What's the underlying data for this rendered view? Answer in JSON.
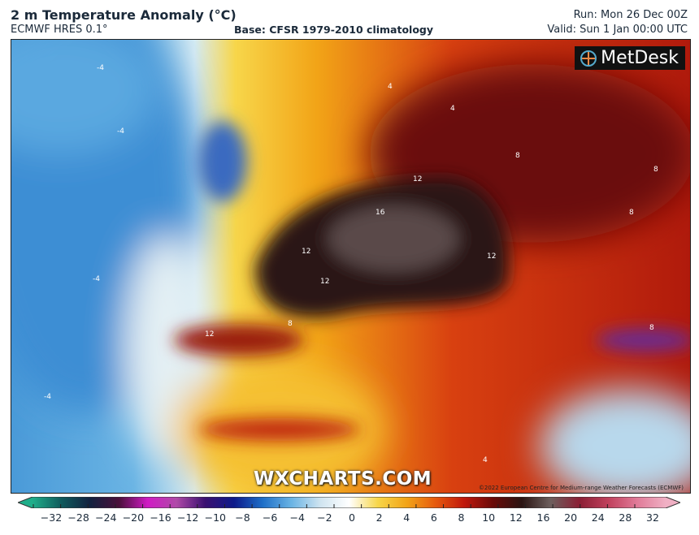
{
  "header": {
    "title": "2 m Temperature Anomaly (°C)",
    "model": "ECMWF HRES 0.1°",
    "base": "Base: CFSR 1979-2010 climatology",
    "run": "Run: Mon 26 Dec 00Z",
    "valid": "Valid: Sun 1 Jan 00:00 UTC"
  },
  "map": {
    "logo": "MetDesk",
    "watermark": "WXCHARTS.COM",
    "copyright": "©2022 European Centre for Medium-range Weather Forecasts (ECMWF)",
    "contour_labels": [
      "-4",
      "-4",
      "-4",
      "-4",
      "4",
      "4",
      "8",
      "8",
      "8",
      "12",
      "16",
      "12",
      "12",
      "12",
      "12",
      "8",
      "8",
      "4"
    ]
  },
  "colorbar": {
    "ticks": [
      "−32",
      "−28",
      "−24",
      "−20",
      "−16",
      "−12",
      "−10",
      "−8",
      "−6",
      "−4",
      "−2",
      "0",
      "2",
      "4",
      "6",
      "8",
      "10",
      "12",
      "16",
      "20",
      "24",
      "28",
      "32"
    ],
    "colors": [
      "#1fae8a",
      "#0f5a5c",
      "#12213f",
      "#4a0f3a",
      "#d01bc4",
      "#b04aa8",
      "#3a1070",
      "#0d1a8a",
      "#1e6fc8",
      "#6ab4e4",
      "#cfe4f0",
      "#ffffff",
      "#f7d64a",
      "#f2a417",
      "#e65a0e",
      "#c0180c",
      "#6a0a08",
      "#2a1412",
      "#6d5f5d",
      "#8b1f35",
      "#c0405c",
      "#e07a98",
      "#f0b0c4"
    ]
  }
}
